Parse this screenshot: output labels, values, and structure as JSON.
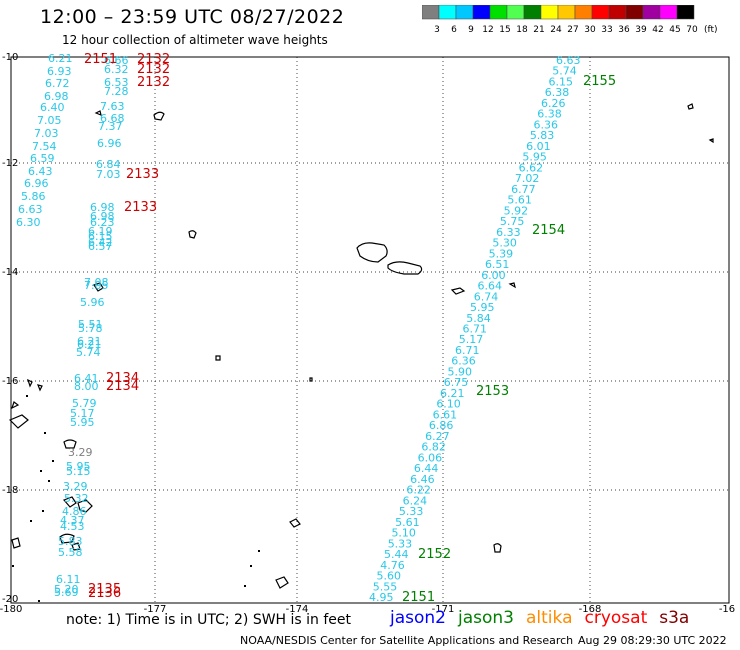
{
  "header": {
    "title": "12:00 – 23:59 UTC 08/27/2022",
    "subtitle": "12 hour collection of altimeter wave heights"
  },
  "colorbar": {
    "labels": [
      "3",
      "6",
      "9",
      "12",
      "15",
      "18",
      "21",
      "24",
      "27",
      "30",
      "33",
      "36",
      "39",
      "42",
      "45",
      "70"
    ],
    "unit": "(ft)",
    "colors": [
      "#7f7f7f",
      "#00ffff",
      "#00c8ff",
      "#0000ff",
      "#00e000",
      "#50ff50",
      "#008000",
      "#ffff00",
      "#ffc800",
      "#ff8000",
      "#ff0000",
      "#c00000",
      "#800000",
      "#a000a0",
      "#ff00ff",
      "#000000"
    ]
  },
  "axes": {
    "lon_labels": [
      "-180",
      "-177",
      "-174",
      "-171",
      "-168",
      "-16"
    ],
    "lat_labels": [
      "-10",
      "-12",
      "-14",
      "-16",
      "-18",
      "-20"
    ]
  },
  "footer": {
    "note": "note: 1) Time is in UTC; 2) SWH is in feet",
    "credit": "NOAA/NESDIS Center for Satellite Applications and Research",
    "timestamp": "Aug 29 08:29:30 UTC 2022",
    "satellites": [
      {
        "name": "jason2",
        "color": "#0000ff"
      },
      {
        "name": "jason3",
        "color": "#008000"
      },
      {
        "name": "altika",
        "color": "#ff8c00"
      },
      {
        "name": "cryosat",
        "color": "#ff0000"
      },
      {
        "name": "s3a",
        "color": "#800000"
      }
    ]
  },
  "track_labels": [
    {
      "text": "2151",
      "color": "#cc0000"
    },
    {
      "text": "2132",
      "color": "#cc0000"
    },
    {
      "text": "2132",
      "color": "#cc0000"
    },
    {
      "text": "2132",
      "color": "#cc0000"
    },
    {
      "text": "2133",
      "color": "#cc0000"
    },
    {
      "text": "2133",
      "color": "#cc0000"
    },
    {
      "text": "2134",
      "color": "#cc0000"
    },
    {
      "text": "2134",
      "color": "#cc0000"
    },
    {
      "text": "2135",
      "color": "#cc0000"
    },
    {
      "text": "2136",
      "color": "#cc0000"
    },
    {
      "text": "2155",
      "color": "#008000"
    },
    {
      "text": "2154",
      "color": "#008000"
    },
    {
      "text": "2153",
      "color": "#008000"
    },
    {
      "text": "2152",
      "color": "#008000"
    },
    {
      "text": "2151",
      "color": "#008000"
    }
  ],
  "west_track_a": [
    "6.21",
    "6.93",
    "6.72",
    "6.98",
    "6.40",
    "7.05",
    "7.03",
    "7.54",
    "6.59",
    "6.43",
    "6.96",
    "5.86",
    "6.63",
    "6.30"
  ],
  "west_track_b": [
    "6.66",
    "6.32",
    "6.53",
    "7.28",
    "7.63",
    "6.68",
    "7.37",
    "6.96",
    "6.84",
    "7.03",
    "6.98",
    "6.98",
    "6.23",
    "6.19",
    "6.15",
    "6.42",
    "6.57"
  ],
  "west_track_c": [
    "7.08",
    "7.05",
    "5.96",
    "5.51",
    "5.78",
    "6.21",
    "6.21",
    "5.74",
    "6.41",
    "8.00",
    "5.79",
    "5.17",
    "5.95",
    "3.29",
    "5.95",
    "5.15",
    "3.29",
    "5.32",
    "4.86",
    "4.37",
    "4.53",
    "5.83",
    "5.58",
    "6.11",
    "5.20",
    "5.69"
  ],
  "east_track": [
    "6.63",
    "5.74",
    "6.15",
    "6.38",
    "6.26",
    "6.38",
    "6.36",
    "5.83",
    "6.01",
    "5.95",
    "6.62",
    "7.02",
    "6.77",
    "5.61",
    "5.92",
    "5.75",
    "6.33",
    "5.30",
    "5.39",
    "6.51",
    "6.00",
    "6.64",
    "6.74",
    "5.95",
    "5.84",
    "6.71",
    "5.17",
    "6.71",
    "6.36",
    "5.90",
    "6.75",
    "6.21",
    "6.10",
    "6.61",
    "6.86",
    "6.27",
    "6.82",
    "6.06",
    "6.44",
    "6.46",
    "6.22",
    "6.24",
    "5.33",
    "5.61",
    "5.10",
    "5.33",
    "5.44",
    "4.76",
    "5.60",
    "5.55",
    "4.95"
  ]
}
